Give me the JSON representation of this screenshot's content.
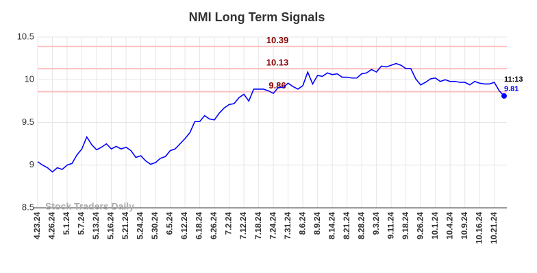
{
  "chart_data": {
    "type": "line",
    "title": "NMI Long Term Signals",
    "categories": [
      "4.23.24",
      null,
      null,
      "4.26.24",
      null,
      null,
      "5.1.24",
      null,
      null,
      "5.7.24",
      null,
      null,
      "5.13.24",
      null,
      null,
      "5.16.24",
      null,
      null,
      "5.21.24",
      null,
      null,
      "5.24.24",
      null,
      null,
      "5.30.24",
      null,
      null,
      "6.5.24",
      null,
      null,
      "6.12.24",
      null,
      null,
      "6.18.24",
      null,
      null,
      "6.26.24",
      null,
      null,
      "7.2.24",
      null,
      null,
      "7.12.24",
      null,
      null,
      "7.18.24",
      null,
      null,
      "7.24.24",
      null,
      null,
      "7.31.24",
      null,
      null,
      "8.6.24",
      null,
      null,
      "8.9.24",
      null,
      null,
      "8.14.24",
      null,
      null,
      "8.21.24",
      null,
      null,
      "8.28.24",
      null,
      null,
      "9.3.24",
      null,
      null,
      "9.11.24",
      null,
      null,
      "9.18.24",
      null,
      null,
      "9.26.24",
      null,
      null,
      "10.1.24",
      null,
      null,
      "10.4.24",
      null,
      null,
      "10.9.24",
      null,
      null,
      "10.16.24",
      null,
      null,
      "10.21.24",
      null,
      null
    ],
    "series": [
      {
        "color": "#0000ff",
        "values": [
          9.04,
          9.0,
          8.97,
          8.92,
          8.97,
          8.95,
          9.0,
          9.02,
          9.12,
          9.19,
          9.33,
          9.24,
          9.18,
          9.21,
          9.25,
          9.19,
          9.22,
          9.19,
          9.21,
          9.17,
          9.09,
          9.11,
          9.05,
          9.01,
          9.03,
          9.08,
          9.1,
          9.17,
          9.19,
          9.25,
          9.31,
          9.38,
          9.51,
          9.51,
          9.58,
          9.54,
          9.53,
          9.61,
          9.67,
          9.71,
          9.72,
          9.79,
          9.83,
          9.75,
          9.89,
          9.89,
          9.89,
          9.87,
          9.84,
          9.91,
          9.91,
          9.96,
          9.92,
          9.89,
          9.93,
          10.09,
          9.95,
          10.05,
          10.04,
          10.08,
          10.06,
          10.07,
          10.03,
          10.03,
          10.02,
          10.02,
          10.07,
          10.08,
          10.12,
          10.09,
          10.16,
          10.15,
          10.17,
          10.19,
          10.17,
          10.13,
          10.13,
          10.01,
          9.94,
          9.97,
          10.01,
          10.02,
          9.98,
          10.0,
          9.98,
          9.98,
          9.97,
          9.97,
          9.94,
          9.98,
          9.96,
          9.95,
          9.95,
          9.97,
          9.87,
          9.81
        ]
      }
    ],
    "reference_lines": [
      10.39,
      10.13,
      9.86
    ],
    "reference_color": "#ffc0c0",
    "reference_label_color": "#8b0000",
    "last_time_label": "11:13",
    "watermark": "Stock Traders Daily",
    "ylim": [
      8.5,
      10.5
    ],
    "yticks": [
      8.5,
      9,
      9.5,
      10,
      10.5
    ],
    "grid": true
  }
}
